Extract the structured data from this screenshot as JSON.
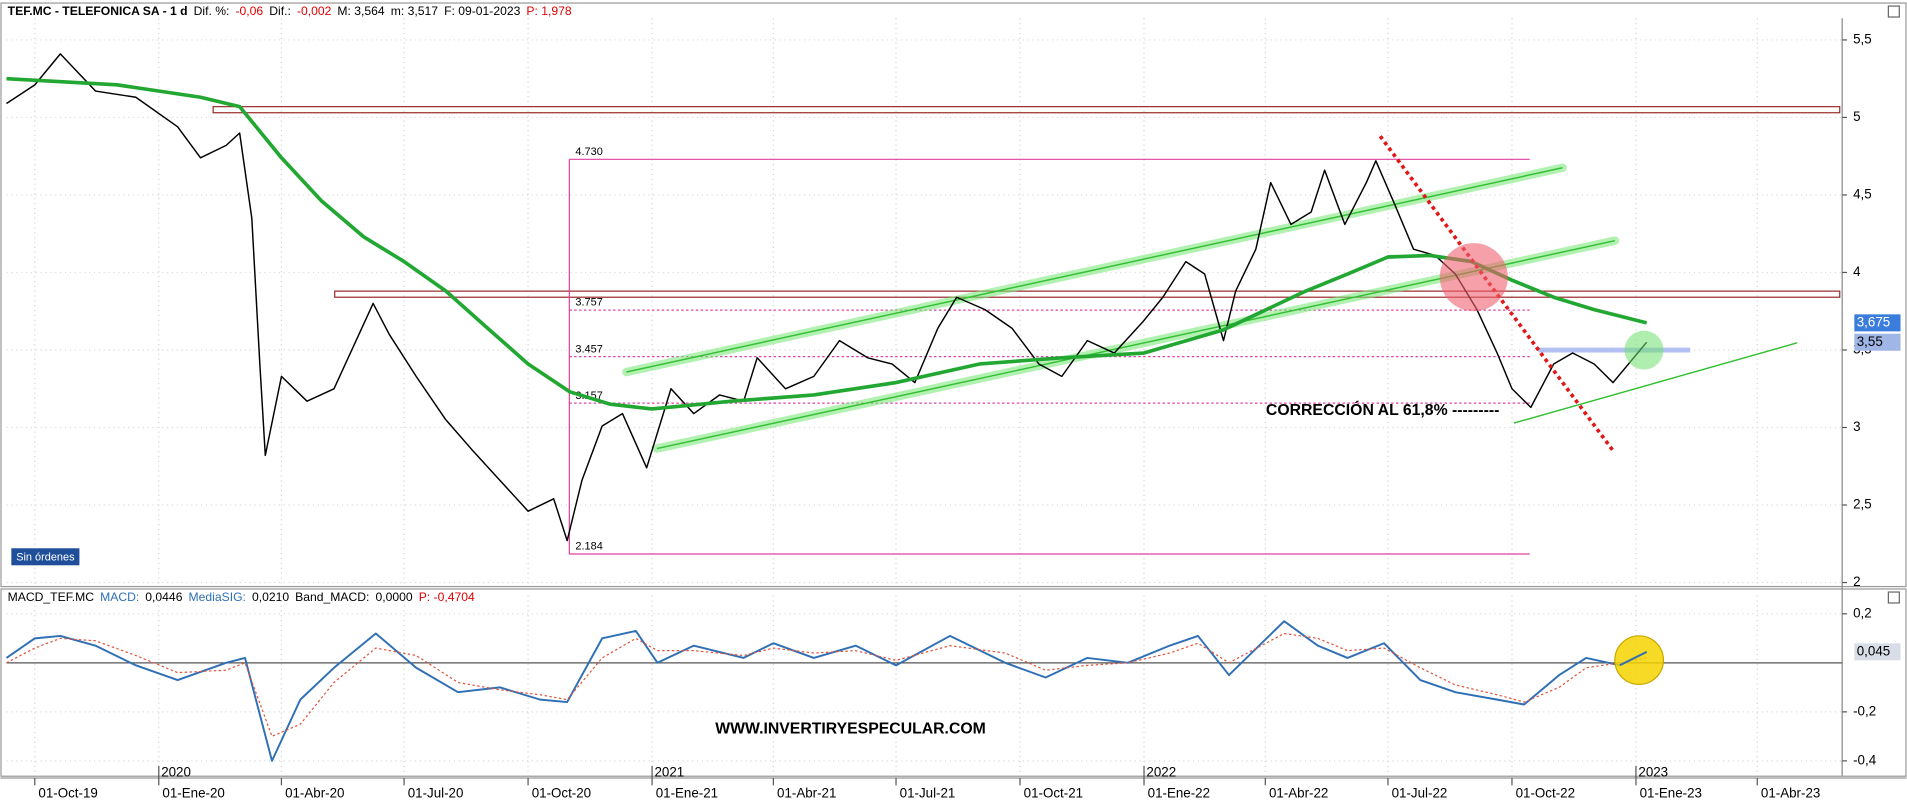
{
  "chart_data": [
    {
      "type": "line",
      "title_parts": [
        {
          "text": "TEF.MC - TELEFONICA SA - 1 d",
          "color": "#000000"
        },
        {
          "text": "Dif. %:",
          "color": "#000000"
        },
        {
          "text": "-0,06",
          "color": "#e00000"
        },
        {
          "text": "Dif.:",
          "color": "#000000"
        },
        {
          "text": "-0,002",
          "color": "#e00000"
        },
        {
          "text": "M: 3,564",
          "color": "#000000"
        },
        {
          "text": "m: 3,517",
          "color": "#000000"
        },
        {
          "text": "F: 09-01-2023",
          "color": "#000000"
        },
        {
          "text": "P: 1,978",
          "color": "#e00000"
        }
      ],
      "xlim": [
        "2019-09-10",
        "2023-06-03"
      ],
      "xticks": [
        {
          "value": "2019-10-01",
          "label": "01-Oct-19"
        },
        {
          "value": "2020-01-01",
          "label": "01-Ene-20"
        },
        {
          "value": "2020-04-01",
          "label": "01-Abr-20"
        },
        {
          "value": "2020-07-01",
          "label": "01-Jul-20"
        },
        {
          "value": "2020-10-01",
          "label": "01-Oct-20"
        },
        {
          "value": "2021-01-01",
          "label": "01-Ene-21"
        },
        {
          "value": "2021-04-01",
          "label": "01-Abr-21"
        },
        {
          "value": "2021-07-01",
          "label": "01-Jul-21"
        },
        {
          "value": "2021-10-01",
          "label": "01-Oct-21"
        },
        {
          "value": "2022-01-01",
          "label": "01-Ene-22"
        },
        {
          "value": "2022-04-01",
          "label": "01-Abr-22"
        },
        {
          "value": "2022-07-01",
          "label": "01-Jul-22"
        },
        {
          "value": "2022-10-01",
          "label": "01-Oct-22"
        },
        {
          "value": "2023-01-01",
          "label": "01-Ene-23"
        },
        {
          "value": "2023-04-01",
          "label": "01-Abr-23"
        }
      ],
      "year_ticks": [
        {
          "value": "2020-01-01",
          "label": "2020"
        },
        {
          "value": "2021-01-01",
          "label": "2021"
        },
        {
          "value": "2022-01-01",
          "label": "2022"
        },
        {
          "value": "2023-01-01",
          "label": "2023"
        }
      ],
      "ylim": [
        1.97,
        5.64
      ],
      "yticks": [
        2,
        {
          "value": 2.5,
          "label": "2,5"
        },
        3,
        {
          "value": 3.5,
          "label": "3,5"
        },
        4,
        {
          "value": 4.5,
          "label": "4,5"
        },
        5,
        {
          "value": 5.5,
          "label": "5,5"
        }
      ],
      "grid": true,
      "series": [
        {
          "color": "#000000",
          "x": [
            "2019-09-10",
            "2019-10-01",
            "2019-10-20",
            "2019-11-15",
            "2019-12-15",
            "2020-01-15",
            "2020-02-01",
            "2020-02-20",
            "2020-03-01",
            "2020-03-10",
            "2020-03-16",
            "2020-03-20",
            "2020-04-01",
            "2020-04-20",
            "2020-05-10",
            "2020-06-08",
            "2020-06-20",
            "2020-07-10",
            "2020-08-01",
            "2020-08-20",
            "2020-09-10",
            "2020-10-01",
            "2020-10-20",
            "2020-10-30",
            "2020-11-10",
            "2020-11-25",
            "2020-12-10",
            "2020-12-28",
            "2021-01-15",
            "2021-02-01",
            "2021-02-20",
            "2021-03-10",
            "2021-03-20",
            "2021-04-10",
            "2021-05-01",
            "2021-05-20",
            "2021-06-10",
            "2021-06-28",
            "2021-07-15",
            "2021-08-01",
            "2021-08-15",
            "2021-09-05",
            "2021-09-25",
            "2021-10-15",
            "2021-11-01",
            "2021-11-20",
            "2021-12-10",
            "2021-12-31",
            "2022-01-15",
            "2022-02-01",
            "2022-02-15",
            "2022-03-01",
            "2022-03-10",
            "2022-03-25",
            "2022-04-05",
            "2022-04-20",
            "2022-05-05",
            "2022-05-15",
            "2022-05-30",
            "2022-06-15",
            "2022-06-22",
            "2022-07-05",
            "2022-07-20",
            "2022-08-05",
            "2022-08-20",
            "2022-09-05",
            "2022-09-20",
            "2022-10-01",
            "2022-10-15",
            "2022-11-01",
            "2022-11-15",
            "2022-12-01",
            "2022-12-15",
            "2023-01-09"
          ],
          "values": [
            5.09,
            5.21,
            5.41,
            5.17,
            5.13,
            4.94,
            4.74,
            4.82,
            4.9,
            4.35,
            3.41,
            2.82,
            3.33,
            3.17,
            3.25,
            3.8,
            3.6,
            3.33,
            3.05,
            2.86,
            2.66,
            2.46,
            2.54,
            2.27,
            2.66,
            3.01,
            3.09,
            2.74,
            3.25,
            3.09,
            3.21,
            3.17,
            3.45,
            3.25,
            3.33,
            3.56,
            3.45,
            3.41,
            3.29,
            3.64,
            3.84,
            3.76,
            3.64,
            3.41,
            3.33,
            3.56,
            3.48,
            3.68,
            3.84,
            4.07,
            3.99,
            3.56,
            3.88,
            4.15,
            4.58,
            4.31,
            4.39,
            4.66,
            4.31,
            4.58,
            4.72,
            4.46,
            4.15,
            4.11,
            3.99,
            3.76,
            3.48,
            3.25,
            3.13,
            3.41,
            3.48,
            3.41,
            3.29,
            3.55
          ]
        },
        {
          "color": "#22a832",
          "x": [
            "2019-09-10",
            "2019-12-01",
            "2020-02-01",
            "2020-03-01",
            "2020-04-01",
            "2020-05-01",
            "2020-06-01",
            "2020-07-01",
            "2020-08-01",
            "2020-09-01",
            "2020-10-01",
            "2020-11-01",
            "2020-12-01",
            "2021-01-01",
            "2021-03-01",
            "2021-05-01",
            "2021-07-01",
            "2021-09-01",
            "2021-11-01",
            "2022-01-01",
            "2022-03-01",
            "2022-05-01",
            "2022-06-01",
            "2022-07-01",
            "2022-08-01",
            "2022-09-01",
            "2022-10-01",
            "2022-11-01",
            "2022-12-01",
            "2023-01-09"
          ],
          "values": [
            5.25,
            5.21,
            5.13,
            5.07,
            4.74,
            4.46,
            4.23,
            4.07,
            3.88,
            3.64,
            3.41,
            3.23,
            3.15,
            3.12,
            3.17,
            3.21,
            3.29,
            3.41,
            3.45,
            3.48,
            3.63,
            3.88,
            3.99,
            4.1,
            4.11,
            4.07,
            3.95,
            3.84,
            3.76,
            3.675
          ]
        }
      ],
      "last_labels": [
        {
          "value": 3.675,
          "label": "3,675",
          "color": "#3b7ddd"
        },
        {
          "value": 3.55,
          "label": "3,55",
          "color": "#9fb6e6"
        }
      ],
      "levels": [
        {
          "value": 4.73,
          "label": "4.730"
        },
        {
          "value": 3.757,
          "label": "3.757"
        },
        {
          "value": 3.457,
          "label": "3.457"
        },
        {
          "value": 3.157,
          "label": "3.157"
        },
        {
          "value": 2.184,
          "label": "2.184"
        }
      ],
      "resistance": [
        5.05,
        3.86
      ],
      "annotation": "CORRECCIÓN AL 61,8% ---------",
      "status": "Sin órdenes"
    },
    {
      "type": "line",
      "title_parts": [
        {
          "text": "MACD_TEF.MC",
          "color": "#000000"
        },
        {
          "text": "MACD:",
          "color": "#2f6fb5"
        },
        {
          "text": "0,0446",
          "color": "#000000"
        },
        {
          "text": "MediaSIG:",
          "color": "#2f6fb5"
        },
        {
          "text": "0,0210",
          "color": "#000000"
        },
        {
          "text": "Band_MACD:",
          "color": "#000000"
        },
        {
          "text": "0,0000",
          "color": "#000000"
        },
        {
          "text": "P: -0,4704",
          "color": "#e00000"
        }
      ],
      "ylim": [
        -0.46,
        0.274
      ],
      "yticks": [
        {
          "value": 0.2,
          "label": "0,2"
        },
        {
          "value": -0.2,
          "label": "-0,2"
        },
        {
          "value": -0.4,
          "label": "-0,4"
        }
      ],
      "band": 0,
      "series": [
        {
          "color": "#2f6fb5",
          "x": [
            "2019-09-10",
            "2019-10-01",
            "2019-10-20",
            "2019-11-15",
            "2019-12-15",
            "2020-01-15",
            "2020-02-20",
            "2020-03-05",
            "2020-03-25",
            "2020-04-15",
            "2020-05-10",
            "2020-06-10",
            "2020-07-10",
            "2020-08-10",
            "2020-09-10",
            "2020-10-10",
            "2020-10-30",
            "2020-11-25",
            "2020-12-20",
            "2021-01-05",
            "2021-02-01",
            "2021-03-10",
            "2021-04-01",
            "2021-05-01",
            "2021-06-01",
            "2021-07-01",
            "2021-08-10",
            "2021-09-20",
            "2021-10-20",
            "2021-11-20",
            "2021-12-20",
            "2022-01-20",
            "2022-02-10",
            "2022-03-05",
            "2022-04-15",
            "2022-05-10",
            "2022-06-01",
            "2022-06-28",
            "2022-07-25",
            "2022-08-20",
            "2022-09-20",
            "2022-10-10",
            "2022-11-05",
            "2022-11-25",
            "2022-12-20",
            "2023-01-09"
          ],
          "values": [
            0.02,
            0.1,
            0.11,
            0.07,
            -0.01,
            -0.07,
            0,
            0.02,
            -0.4,
            -0.15,
            -0.02,
            0.12,
            -0.02,
            -0.12,
            -0.1,
            -0.15,
            -0.16,
            0.1,
            0.13,
            0,
            0.07,
            0.02,
            0.08,
            0.02,
            0.07,
            -0.01,
            0.11,
            0,
            -0.06,
            0.02,
            0,
            0.07,
            0.11,
            -0.05,
            0.17,
            0.07,
            0.02,
            0.08,
            -0.07,
            -0.12,
            -0.15,
            -0.17,
            -0.05,
            0.02,
            -0.01,
            0.0446
          ]
        },
        {
          "color": "#e0533a",
          "dashed": true,
          "x": [
            "2019-09-10",
            "2019-10-01",
            "2019-10-20",
            "2019-11-15",
            "2019-12-15",
            "2020-01-15",
            "2020-02-20",
            "2020-03-05",
            "2020-03-25",
            "2020-04-15",
            "2020-05-10",
            "2020-06-10",
            "2020-07-10",
            "2020-08-10",
            "2020-09-10",
            "2020-10-10",
            "2020-10-30",
            "2020-11-25",
            "2020-12-20",
            "2021-01-05",
            "2021-02-01",
            "2021-03-10",
            "2021-04-01",
            "2021-05-01",
            "2021-06-01",
            "2021-07-01",
            "2021-08-10",
            "2021-09-20",
            "2021-10-20",
            "2021-11-20",
            "2021-12-20",
            "2022-01-20",
            "2022-02-10",
            "2022-03-05",
            "2022-04-15",
            "2022-05-10",
            "2022-06-01",
            "2022-06-28",
            "2022-07-25",
            "2022-08-20",
            "2022-09-20",
            "2022-10-10",
            "2022-11-05",
            "2022-11-25",
            "2022-12-20",
            "2023-01-09"
          ],
          "values": [
            0,
            0.06,
            0.1,
            0.09,
            0.03,
            -0.04,
            -0.03,
            0,
            -0.3,
            -0.25,
            -0.08,
            0.06,
            0.03,
            -0.08,
            -0.11,
            -0.13,
            -0.15,
            0.02,
            0.1,
            0.05,
            0.05,
            0.03,
            0.06,
            0.04,
            0.05,
            0.01,
            0.07,
            0.04,
            -0.03,
            -0.01,
            0,
            0.04,
            0.08,
            0,
            0.12,
            0.1,
            0.05,
            0.06,
            -0.02,
            -0.09,
            -0.13,
            -0.16,
            -0.1,
            -0.02,
            0,
            0.021
          ]
        }
      ],
      "last_labels": [
        {
          "value": 0.045,
          "label": "0,045",
          "color": "#d8dde8"
        }
      ],
      "annotation": "WWW.INVERTIRYESPECULAR.COM"
    }
  ]
}
